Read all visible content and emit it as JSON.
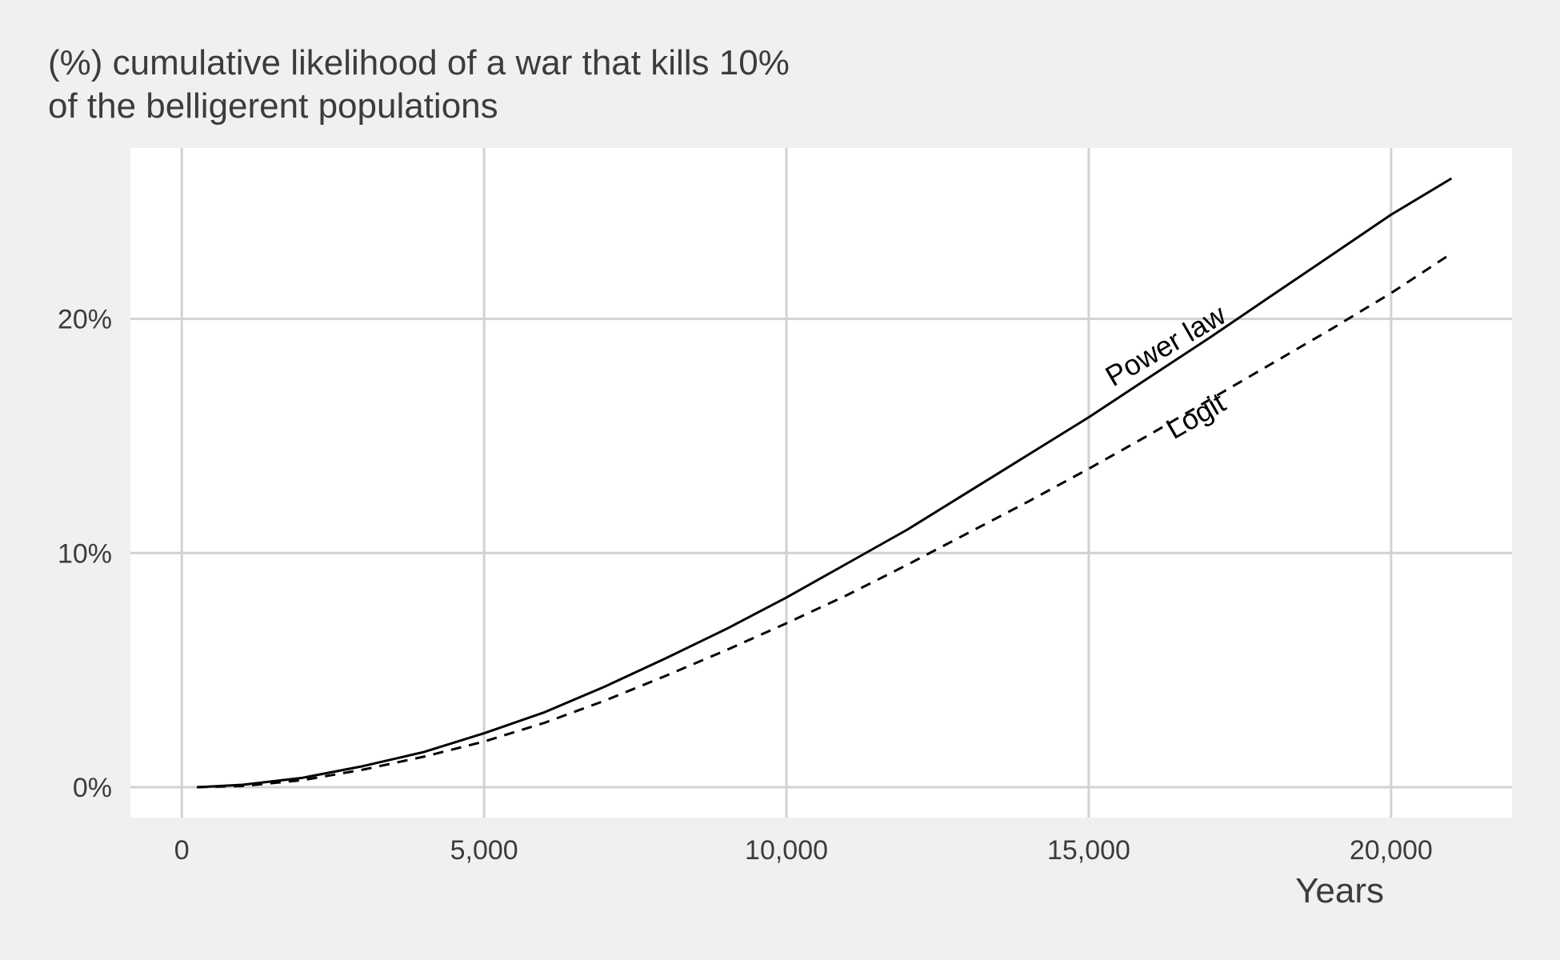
{
  "chart_data": {
    "type": "line",
    "title_lines": [
      "(%) cumulative likelihood of a war that kills 10%",
      "of the belligerent populations"
    ],
    "xlabel": "Years",
    "ylabel": "",
    "xlim": [
      -850,
      22000
    ],
    "ylim": [
      -1.3,
      27.3
    ],
    "x_ticks": [
      0,
      5000,
      10000,
      15000,
      20000
    ],
    "x_tick_labels": [
      "0",
      "5,000",
      "10,000",
      "15,000",
      "20,000"
    ],
    "y_ticks": [
      0,
      10,
      20
    ],
    "y_tick_labels": [
      "0%",
      "10%",
      "20%"
    ],
    "grid": true,
    "legend": "none",
    "series": [
      {
        "name": "Power law",
        "line_style": "solid",
        "x": [
          250,
          1000,
          2000,
          3000,
          4000,
          5000,
          6000,
          7000,
          8000,
          9000,
          10000,
          11000,
          12000,
          13000,
          14000,
          15000,
          16000,
          17000,
          18000,
          19000,
          20000,
          21000
        ],
        "y": [
          0,
          0.1,
          0.4,
          0.9,
          1.5,
          2.3,
          3.2,
          4.3,
          5.5,
          6.75,
          8.1,
          9.55,
          11.0,
          12.6,
          14.2,
          15.8,
          17.5,
          19.2,
          20.95,
          22.7,
          24.45,
          26.0
        ]
      },
      {
        "name": "Logit",
        "line_style": "dashed",
        "x": [
          250,
          1000,
          2000,
          3000,
          4000,
          5000,
          6000,
          7000,
          8000,
          9000,
          10000,
          11000,
          12000,
          13000,
          14000,
          15000,
          16000,
          17000,
          18000,
          19000,
          20000,
          21000
        ],
        "y": [
          0,
          0.05,
          0.3,
          0.75,
          1.3,
          1.95,
          2.75,
          3.7,
          4.75,
          5.85,
          7.0,
          8.2,
          9.5,
          10.85,
          12.2,
          13.6,
          15.05,
          16.55,
          18.05,
          19.55,
          21.1,
          22.8
        ]
      }
    ],
    "annotations": [
      {
        "text": "Power law",
        "series": "Power law",
        "x": 16350,
        "y": 18.5,
        "rotation": -30
      },
      {
        "text": "Logit",
        "series": "Logit",
        "x": 16850,
        "y": 15.5,
        "rotation": -30
      }
    ],
    "colors": {
      "background": "#f0f0f0",
      "panel": "#ffffff",
      "grid": "#d2d2d2",
      "line": "#000000",
      "text": "#3c3c3c"
    }
  }
}
